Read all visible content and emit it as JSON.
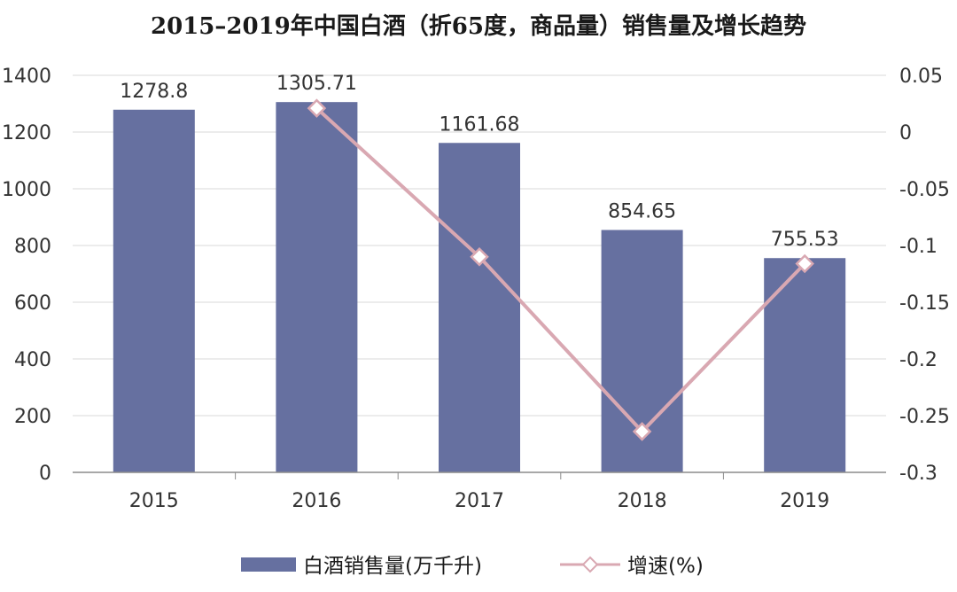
{
  "chart_data": {
    "type": "bar+line",
    "title": "2015–2019年中国白酒（折65度，商品量）销售量及增长趋势",
    "categories": [
      "2015",
      "2016",
      "2017",
      "2018",
      "2019"
    ],
    "series": [
      {
        "name": "白酒销售量(万千升)",
        "type": "bar",
        "axis": "left",
        "color": "#6670a0",
        "values": [
          1278.8,
          1305.71,
          1161.68,
          854.65,
          755.53
        ],
        "labels": [
          "1278.8",
          "1305.71",
          "1161.68",
          "854.65",
          "755.53"
        ]
      },
      {
        "name": "增速(%)",
        "type": "line",
        "axis": "right",
        "color": "#d9a8b2",
        "marker": "diamond",
        "values": [
          null,
          0.021,
          -0.11,
          -0.264,
          -0.116
        ]
      }
    ],
    "y_left": {
      "min": 0,
      "max": 1400,
      "ticks": [
        "0",
        "200",
        "400",
        "600",
        "800",
        "1000",
        "1200",
        "1400"
      ]
    },
    "y_right": {
      "min": -0.3,
      "max": 0.05,
      "ticks": [
        "-0.3",
        "-0.25",
        "-0.2",
        "-0.15",
        "-0.1",
        "-0.05",
        "0",
        "0.05"
      ]
    },
    "grid": true,
    "legend_position": "bottom"
  }
}
